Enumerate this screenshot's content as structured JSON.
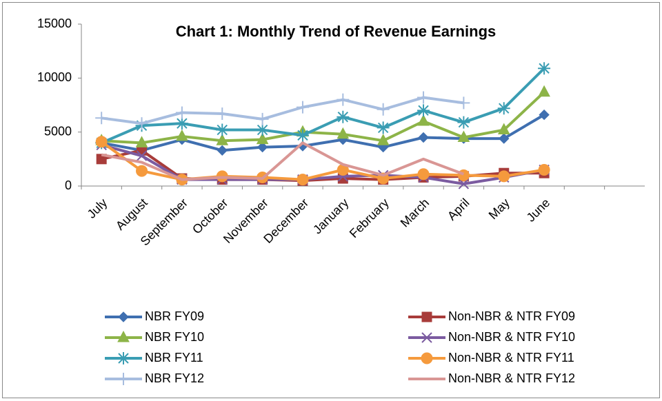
{
  "chart_data": {
    "type": "line",
    "title": "Chart 1: Monthly Trend of Revenue Earnings",
    "categories": [
      "July",
      "August",
      "September",
      "October",
      "November",
      "December",
      "January",
      "February",
      "March",
      "April",
      "May",
      "June",
      null,
      null
    ],
    "ylim": [
      0,
      15000
    ],
    "yticks": [
      0,
      5000,
      10000,
      15000
    ],
    "grid": false,
    "series": [
      {
        "name": "NBR FY09",
        "color": "#3f6fb0",
        "marker": "diamond",
        "values": [
          4000,
          3300,
          4300,
          3300,
          3600,
          3700,
          4300,
          3600,
          4500,
          4400,
          4400,
          6600,
          null,
          null
        ]
      },
      {
        "name": "Non-NBR & NTR FY09",
        "color": "#a83c3a",
        "marker": "square",
        "values": [
          2500,
          3300,
          700,
          600,
          600,
          500,
          700,
          600,
          800,
          900,
          1200,
          1200,
          null,
          null
        ]
      },
      {
        "name": "NBR FY10",
        "color": "#8db448",
        "marker": "triangle",
        "values": [
          4200,
          4000,
          4600,
          4200,
          4300,
          5000,
          4800,
          4200,
          6000,
          4500,
          5200,
          8700,
          null,
          null
        ]
      },
      {
        "name": "Non-NBR & NTR FY10",
        "color": "#7b5ba0",
        "marker": "x",
        "values": [
          3800,
          2800,
          600,
          600,
          600,
          600,
          900,
          1000,
          800,
          200,
          800,
          1500,
          null,
          null
        ]
      },
      {
        "name": "NBR FY11",
        "color": "#3a9db3",
        "marker": "star",
        "values": [
          4000,
          5600,
          5800,
          5200,
          5200,
          4700,
          6400,
          5400,
          7000,
          5900,
          7200,
          10900,
          null,
          null
        ]
      },
      {
        "name": "Non-NBR & NTR FY11",
        "color": "#f59a3d",
        "marker": "circle",
        "values": [
          4100,
          1400,
          600,
          900,
          800,
          600,
          1500,
          700,
          1100,
          1000,
          900,
          1500,
          null,
          null
        ]
      },
      {
        "name": "NBR FY12",
        "color": "#a7bddf",
        "marker": "plus",
        "values": [
          6300,
          5800,
          6800,
          6700,
          6200,
          7300,
          8000,
          7100,
          8200,
          7700,
          null,
          null,
          null,
          null
        ]
      },
      {
        "name": "Non-NBR & NTR FY12",
        "color": "#d99694",
        "marker": "none",
        "values": [
          2900,
          2200,
          600,
          800,
          700,
          4000,
          2000,
          1000,
          2500,
          1100,
          null,
          null,
          null,
          null
        ]
      }
    ]
  }
}
